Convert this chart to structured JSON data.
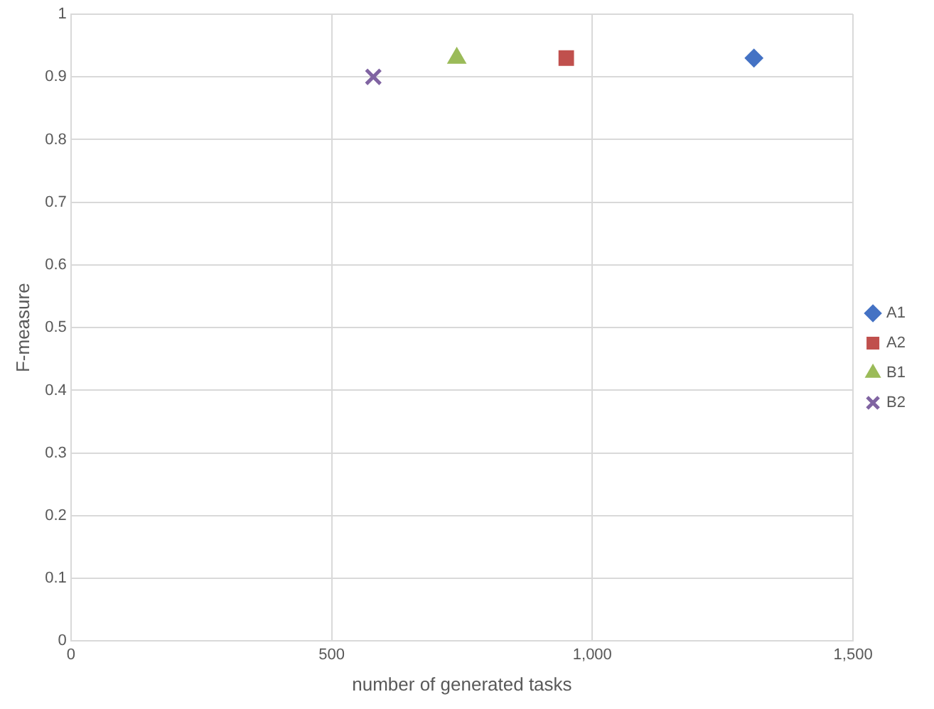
{
  "chart_data": {
    "type": "scatter",
    "xlabel": "number of generated tasks",
    "ylabel": "F-measure",
    "xlim": [
      0,
      1500
    ],
    "xticks": [
      0,
      500,
      {
        "value": 1000,
        "label": "1,000"
      },
      {
        "value": 1500,
        "label": "1,500"
      }
    ],
    "ylim": [
      0,
      1
    ],
    "yticks": [
      0,
      0.1,
      0.2,
      0.3,
      0.4,
      0.5,
      0.6,
      0.7,
      0.8,
      0.9,
      1
    ],
    "grid": true,
    "legend": "right",
    "series": [
      {
        "name": "A1",
        "color": "#4472c4",
        "marker": "diamond",
        "x": [
          1310
        ],
        "values": [
          0.93
        ]
      },
      {
        "name": "A2",
        "color": "#c0504d",
        "marker": "square",
        "x": [
          950
        ],
        "values": [
          0.93
        ]
      },
      {
        "name": "B1",
        "color": "#9bbb59",
        "marker": "triangle",
        "x": [
          740
        ],
        "values": [
          0.93
        ]
      },
      {
        "name": "B2",
        "color": "#8064a2",
        "marker": "cross",
        "x": [
          580
        ],
        "values": [
          0.9
        ]
      }
    ]
  }
}
